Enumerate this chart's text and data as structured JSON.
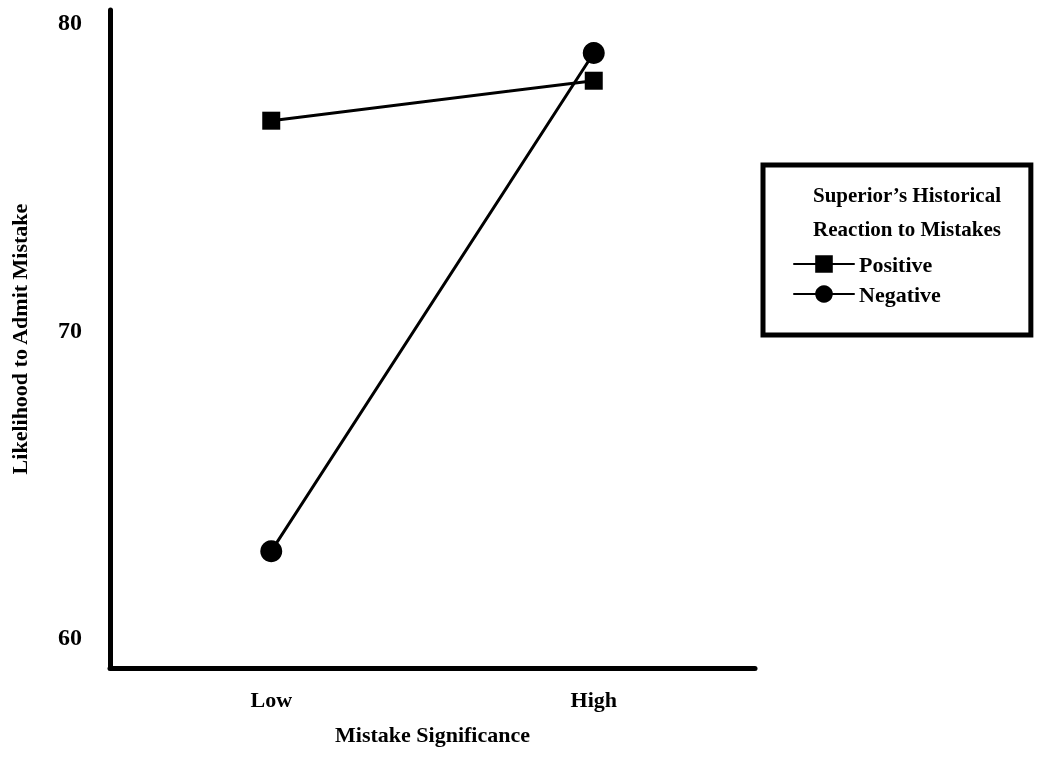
{
  "chart_data": {
    "type": "line",
    "xlabel": "Mistake Significance",
    "ylabel": "Likelihood to Admit Mistake",
    "legend_title": "Superior’s Historical\nReaction to Mistakes",
    "categories": [
      "Low",
      "High"
    ],
    "series": [
      {
        "name": "Positive",
        "color": "#000000",
        "marker": "square",
        "values": [
          76.8,
          78.1
        ]
      },
      {
        "name": "Negative",
        "color": "#000000",
        "marker": "circle",
        "values": [
          62.8,
          79.0
        ]
      }
    ],
    "ylim": [
      59,
      80.4
    ],
    "yticks": [
      60,
      70,
      80
    ],
    "grid": false,
    "legend": "right",
    "line_style": "solid"
  }
}
